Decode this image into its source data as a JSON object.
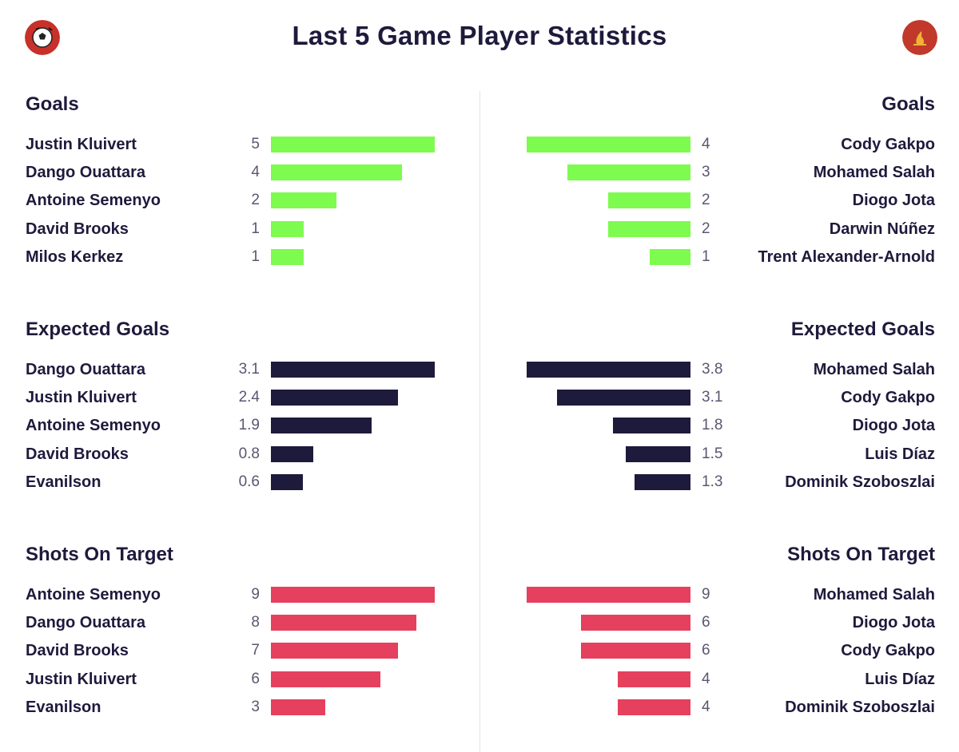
{
  "page": {
    "title": "Last 5 Game Player Statistics"
  },
  "teams": {
    "left": {
      "badge_icon": "bournemouth-badge-icon",
      "badge_color": "#c8302a"
    },
    "right": {
      "badge_icon": "liverpool-badge-icon",
      "badge_color": "#c0392b"
    }
  },
  "colors": {
    "goals": "#7dfb4f",
    "expected_goals": "#1e1a3c",
    "shots_on_target": "#e5405e"
  },
  "chart_data": [
    {
      "type": "bar",
      "id": "goals-left",
      "side": "left",
      "title": "Goals",
      "color_key": "goals",
      "xlim": [
        0,
        5
      ],
      "rows": [
        {
          "player": "Justin Kluivert",
          "value": 5,
          "label": "5"
        },
        {
          "player": "Dango Ouattara",
          "value": 4,
          "label": "4"
        },
        {
          "player": "Antoine Semenyo",
          "value": 2,
          "label": "2"
        },
        {
          "player": "David Brooks",
          "value": 1,
          "label": "1"
        },
        {
          "player": "Milos Kerkez",
          "value": 1,
          "label": "1"
        }
      ]
    },
    {
      "type": "bar",
      "id": "goals-right",
      "side": "right",
      "title": "Goals",
      "color_key": "goals",
      "xlim": [
        0,
        4
      ],
      "rows": [
        {
          "player": "Cody Gakpo",
          "value": 4,
          "label": "4"
        },
        {
          "player": "Mohamed Salah",
          "value": 3,
          "label": "3"
        },
        {
          "player": "Diogo Jota",
          "value": 2,
          "label": "2"
        },
        {
          "player": "Darwin Núñez",
          "value": 2,
          "label": "2"
        },
        {
          "player": "Trent Alexander-Arnold",
          "value": 1,
          "label": "1"
        }
      ]
    },
    {
      "type": "bar",
      "id": "xg-left",
      "side": "left",
      "title": "Expected Goals",
      "color_key": "expected_goals",
      "xlim": [
        0,
        3.1
      ],
      "rows": [
        {
          "player": "Dango Ouattara",
          "value": 3.1,
          "label": "3.1"
        },
        {
          "player": "Justin Kluivert",
          "value": 2.4,
          "label": "2.4"
        },
        {
          "player": "Antoine Semenyo",
          "value": 1.9,
          "label": "1.9"
        },
        {
          "player": "David Brooks",
          "value": 0.8,
          "label": "0.8"
        },
        {
          "player": "Evanilson",
          "value": 0.6,
          "label": "0.6"
        }
      ]
    },
    {
      "type": "bar",
      "id": "xg-right",
      "side": "right",
      "title": "Expected Goals",
      "color_key": "expected_goals",
      "xlim": [
        0,
        3.8
      ],
      "rows": [
        {
          "player": "Mohamed Salah",
          "value": 3.8,
          "label": "3.8"
        },
        {
          "player": "Cody Gakpo",
          "value": 3.1,
          "label": "3.1"
        },
        {
          "player": "Diogo Jota",
          "value": 1.8,
          "label": "1.8"
        },
        {
          "player": "Luis Díaz",
          "value": 1.5,
          "label": "1.5"
        },
        {
          "player": "Dominik Szoboszlai",
          "value": 1.3,
          "label": "1.3"
        }
      ]
    },
    {
      "type": "bar",
      "id": "sot-left",
      "side": "left",
      "title": "Shots On Target",
      "color_key": "shots_on_target",
      "xlim": [
        0,
        9
      ],
      "rows": [
        {
          "player": "Antoine Semenyo",
          "value": 9,
          "label": "9"
        },
        {
          "player": "Dango Ouattara",
          "value": 8,
          "label": "8"
        },
        {
          "player": "David Brooks",
          "value": 7,
          "label": "7"
        },
        {
          "player": "Justin Kluivert",
          "value": 6,
          "label": "6"
        },
        {
          "player": "Evanilson",
          "value": 3,
          "label": "3"
        }
      ]
    },
    {
      "type": "bar",
      "id": "sot-right",
      "side": "right",
      "title": "Shots On Target",
      "color_key": "shots_on_target",
      "xlim": [
        0,
        9
      ],
      "rows": [
        {
          "player": "Mohamed Salah",
          "value": 9,
          "label": "9"
        },
        {
          "player": "Diogo Jota",
          "value": 6,
          "label": "6"
        },
        {
          "player": "Cody Gakpo",
          "value": 6,
          "label": "6"
        },
        {
          "player": "Luis Díaz",
          "value": 4,
          "label": "4"
        },
        {
          "player": "Dominik Szoboszlai",
          "value": 4,
          "label": "4"
        }
      ]
    }
  ]
}
